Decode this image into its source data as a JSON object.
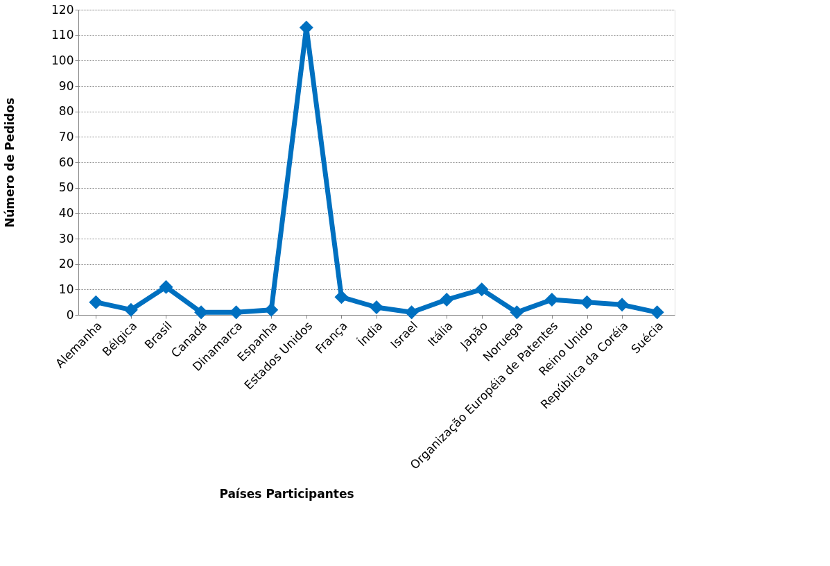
{
  "chart_data": {
    "type": "line",
    "xlabel": "Países Participantes",
    "ylabel": "Número de Pedidos",
    "categories": [
      "Alemanha",
      "Bélgica",
      "Brasil",
      "Canadá",
      "Dinamarca",
      "Espanha",
      "Estados Unidos",
      "França",
      "Índia",
      "Israel",
      "Itália",
      "Japão",
      "Noruega",
      "Organização Européia de Patentes",
      "Reino Unido",
      "República da Coréia",
      "Suécia"
    ],
    "series": [
      {
        "color": "#0070c0",
        "values": [
          5,
          2,
          11,
          1,
          1,
          2,
          113,
          7,
          3,
          1,
          6,
          10,
          1,
          6,
          5,
          4,
          1
        ]
      }
    ],
    "ylim": [
      0,
      120
    ],
    "yticks": [
      0,
      10,
      20,
      30,
      40,
      50,
      60,
      70,
      80,
      90,
      100,
      110,
      120
    ],
    "grid": "y",
    "marker": "diamond",
    "line_style": "solid"
  }
}
